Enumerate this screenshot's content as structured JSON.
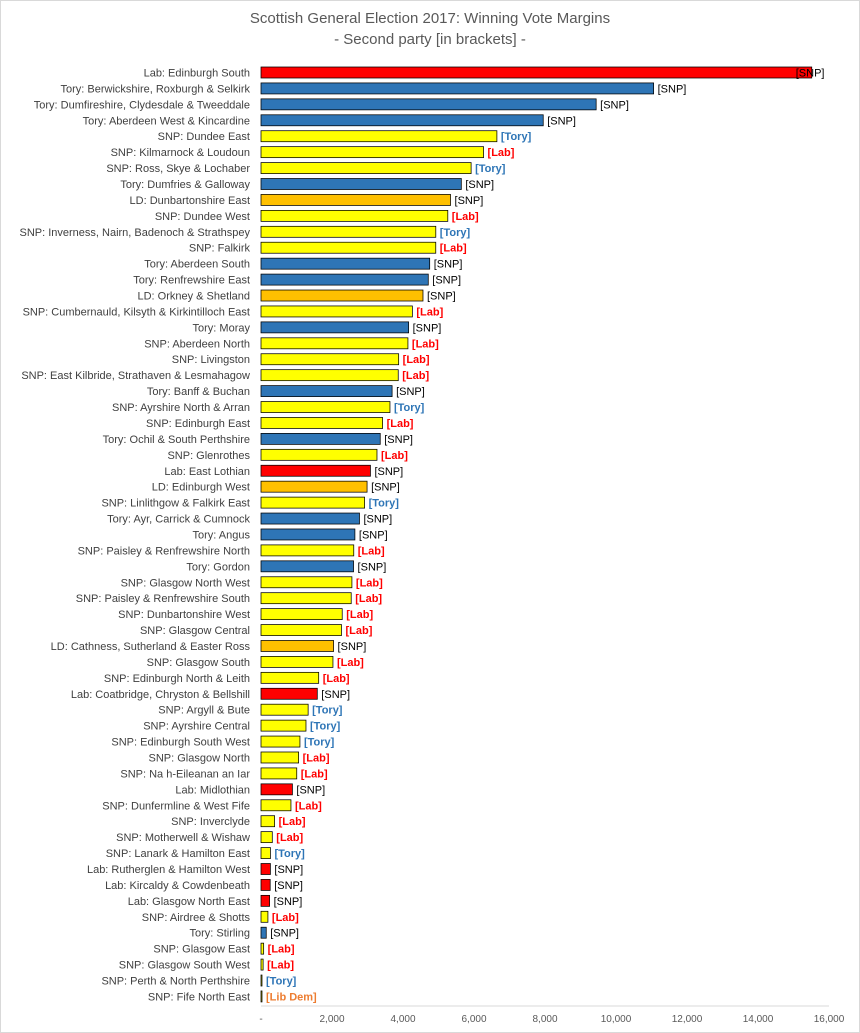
{
  "chart_data": {
    "type": "bar",
    "orientation": "horizontal",
    "title": "Scottish General Election 2017: Winning Vote Margins",
    "subtitle": "- Second party [in brackets] -",
    "xlabel": "",
    "ylabel": "",
    "xlim": [
      0,
      16000
    ],
    "xticks": [
      0,
      2000,
      4000,
      6000,
      8000,
      10000,
      12000,
      14000,
      16000
    ],
    "xtick_labels": [
      "-",
      "2,000",
      "4,000",
      "6,000",
      "8,000",
      "10,000",
      "12,000",
      "14,000",
      "16,000"
    ],
    "grid": false,
    "party_colors": {
      "Lab": "#ff0000",
      "Tory": "#2e75b6",
      "SNP": "#ffff00",
      "LD": "#ffc000"
    },
    "second_party_colors": {
      "[SNP]": "#000000",
      "[Lab]": "#ff0000",
      "[Tory]": "#2e75b6",
      "[Lib Dem]": "#ed7d31"
    },
    "bars": [
      {
        "label": "Lab: Edinburgh South",
        "winner": "Lab",
        "value": 15514,
        "second": "[SNP]"
      },
      {
        "label": "Tory: Berwickshire, Roxburgh & Selkirk",
        "winner": "Tory",
        "value": 11060,
        "second": "[SNP]"
      },
      {
        "label": "Tory: Dumfireshire, Clydesdale & Tweeddale",
        "winner": "Tory",
        "value": 9441,
        "second": "[SNP]"
      },
      {
        "label": "Tory: Aberdeen West & Kincardine",
        "winner": "Tory",
        "value": 7950,
        "second": "[SNP]"
      },
      {
        "label": "SNP: Dundee East",
        "winner": "SNP",
        "value": 6645,
        "second": "[Tory]"
      },
      {
        "label": "SNP: Kilmarnock & Loudoun",
        "winner": "SNP",
        "value": 6269,
        "second": "[Lab]"
      },
      {
        "label": "SNP: Ross, Skye & Lochaber",
        "winner": "SNP",
        "value": 5919,
        "second": "[Tory]"
      },
      {
        "label": "Tory: Dumfries & Galloway",
        "winner": "Tory",
        "value": 5643,
        "second": "[SNP]"
      },
      {
        "label": "LD: Dunbartonshire East",
        "winner": "LD",
        "value": 5339,
        "second": "[SNP]"
      },
      {
        "label": "SNP: Dundee West",
        "winner": "SNP",
        "value": 5262,
        "second": "[Lab]"
      },
      {
        "label": "SNP: Inverness, Nairn, Badenoch & Strathspey",
        "winner": "SNP",
        "value": 4924,
        "second": "[Tory]"
      },
      {
        "label": "SNP: Falkirk",
        "winner": "SNP",
        "value": 4923,
        "second": "[Lab]"
      },
      {
        "label": "Tory: Aberdeen South",
        "winner": "Tory",
        "value": 4752,
        "second": "[SNP]"
      },
      {
        "label": "Tory: Renfrewshire East",
        "winner": "Tory",
        "value": 4712,
        "second": "[SNP]"
      },
      {
        "label": "LD: Orkney & Shetland",
        "winner": "LD",
        "value": 4563,
        "second": "[SNP]"
      },
      {
        "label": "SNP: Cumbernauld, Kilsyth & Kirkintilloch East",
        "winner": "SNP",
        "value": 4264,
        "second": "[Lab]"
      },
      {
        "label": "Tory: Moray",
        "winner": "Tory",
        "value": 4159,
        "second": "[SNP]"
      },
      {
        "label": "SNP: Aberdeen North",
        "winner": "SNP",
        "value": 4139,
        "second": "[Lab]"
      },
      {
        "label": "SNP: Livingston",
        "winner": "SNP",
        "value": 3878,
        "second": "[Lab]"
      },
      {
        "label": "SNP: East Kilbride, Strathaven & Lesmahagow",
        "winner": "SNP",
        "value": 3866,
        "second": "[Lab]"
      },
      {
        "label": "Tory: Banff & Buchan",
        "winner": "Tory",
        "value": 3693,
        "second": "[SNP]"
      },
      {
        "label": "SNP: Ayrshire North & Arran",
        "winner": "SNP",
        "value": 3633,
        "second": "[Tory]"
      },
      {
        "label": "SNP: Edinburgh East",
        "winner": "SNP",
        "value": 3425,
        "second": "[Lab]"
      },
      {
        "label": "Tory: Ochil & South Perthshire",
        "winner": "Tory",
        "value": 3359,
        "second": "[SNP]"
      },
      {
        "label": "SNP: Glenrothes",
        "winner": "SNP",
        "value": 3267,
        "second": "[Lab]"
      },
      {
        "label": "Lab: East Lothian",
        "winner": "Lab",
        "value": 3083,
        "second": "[SNP]"
      },
      {
        "label": "LD: Edinburgh West",
        "winner": "LD",
        "value": 2988,
        "second": "[SNP]"
      },
      {
        "label": "SNP: Linlithgow & Falkirk East",
        "winner": "SNP",
        "value": 2919,
        "second": "[Tory]"
      },
      {
        "label": "Tory: Ayr, Carrick & Cumnock",
        "winner": "Tory",
        "value": 2774,
        "second": "[SNP]"
      },
      {
        "label": "Tory: Angus",
        "winner": "Tory",
        "value": 2645,
        "second": "[SNP]"
      },
      {
        "label": "SNP: Paisley & Renfrewshire North",
        "winner": "SNP",
        "value": 2613,
        "second": "[Lab]"
      },
      {
        "label": "Tory: Gordon",
        "winner": "Tory",
        "value": 2607,
        "second": "[SNP]"
      },
      {
        "label": "SNP: Glasgow North West",
        "winner": "SNP",
        "value": 2561,
        "second": "[Lab]"
      },
      {
        "label": "SNP: Paisley & Renfrewshire South",
        "winner": "SNP",
        "value": 2541,
        "second": "[Lab]"
      },
      {
        "label": "SNP: Dunbartonshire West",
        "winner": "SNP",
        "value": 2288,
        "second": "[Lab]"
      },
      {
        "label": "SNP: Glasgow Central",
        "winner": "SNP",
        "value": 2267,
        "second": "[Lab]"
      },
      {
        "label": "LD: Cathness, Sutherland & Easter Ross",
        "winner": "LD",
        "value": 2044,
        "second": "[SNP]"
      },
      {
        "label": "SNP: Glasgow South",
        "winner": "SNP",
        "value": 2027,
        "second": "[Lab]"
      },
      {
        "label": "SNP: Edinburgh North & Leith",
        "winner": "SNP",
        "value": 1625,
        "second": "[Lab]"
      },
      {
        "label": "Lab: Coatbridge, Chryston & Bellshill",
        "winner": "Lab",
        "value": 1586,
        "second": "[SNP]"
      },
      {
        "label": "SNP: Argyll & Bute",
        "winner": "SNP",
        "value": 1328,
        "second": "[Tory]"
      },
      {
        "label": "SNP: Ayrshire Central",
        "winner": "SNP",
        "value": 1267,
        "second": "[Tory]"
      },
      {
        "label": "SNP: Edinburgh South West",
        "winner": "SNP",
        "value": 1097,
        "second": "[Tory]"
      },
      {
        "label": "SNP: Glasgow North",
        "winner": "SNP",
        "value": 1060,
        "second": "[Lab]"
      },
      {
        "label": "SNP: Na h-Eileanan an Iar",
        "winner": "SNP",
        "value": 1007,
        "second": "[Lab]"
      },
      {
        "label": "Lab: Midlothian",
        "winner": "Lab",
        "value": 885,
        "second": "[SNP]"
      },
      {
        "label": "SNP: Dunfermline & West Fife",
        "winner": "SNP",
        "value": 844,
        "second": "[Lab]"
      },
      {
        "label": "SNP: Inverclyde",
        "winner": "SNP",
        "value": 384,
        "second": "[Lab]"
      },
      {
        "label": "SNP: Motherwell & Wishaw",
        "winner": "SNP",
        "value": 318,
        "second": "[Lab]"
      },
      {
        "label": "SNP: Lanark & Hamilton East",
        "winner": "SNP",
        "value": 266,
        "second": "[Tory]"
      },
      {
        "label": "Lab: Rutherglen & Hamilton West",
        "winner": "Lab",
        "value": 265,
        "second": "[SNP]"
      },
      {
        "label": "Lab: Kircaldy & Cowdenbeath",
        "winner": "Lab",
        "value": 259,
        "second": "[SNP]"
      },
      {
        "label": "Lab: Glasgow North East",
        "winner": "Lab",
        "value": 242,
        "second": "[SNP]"
      },
      {
        "label": "SNP: Airdree & Shotts",
        "winner": "SNP",
        "value": 195,
        "second": "[Lab]"
      },
      {
        "label": "Tory: Stirling",
        "winner": "Tory",
        "value": 148,
        "second": "[SNP]"
      },
      {
        "label": "SNP: Glasgow East",
        "winner": "SNP",
        "value": 75,
        "second": "[Lab]"
      },
      {
        "label": "SNP: Glasgow South West",
        "winner": "SNP",
        "value": 60,
        "second": "[Lab]"
      },
      {
        "label": "SNP: Perth & North Perthshire",
        "winner": "SNP",
        "value": 21,
        "second": "[Tory]"
      },
      {
        "label": "SNP: Fife North East",
        "winner": "SNP",
        "value": 2,
        "second": "[Lib Dem]"
      }
    ]
  }
}
